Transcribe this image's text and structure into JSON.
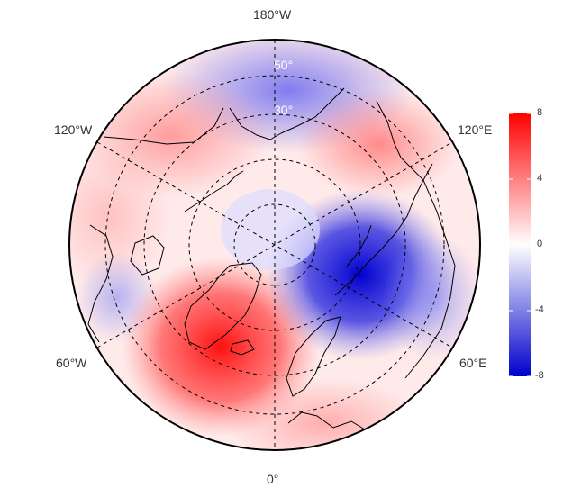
{
  "map": {
    "projection": "north polar stereographic",
    "longitude_labels": {
      "top": "180°W",
      "left_upper": "120°W",
      "right_upper": "120°E",
      "left_lower": "60°W",
      "right_lower": "60°E",
      "bottom": "0°"
    },
    "latitude_labels": [
      "50°",
      "30°"
    ],
    "colorbar": {
      "ticks": [
        "8",
        "4",
        "0",
        "-4",
        "-8"
      ],
      "min": -8,
      "max": 8,
      "colors": {
        "high": "#ff0000",
        "mid": "#ffffff",
        "low": "#0000cc"
      }
    },
    "field_anomalies": [
      {
        "region": "Greenland-Iceland-Atlantic",
        "value": 7
      },
      {
        "region": "Barents-Kara-Scandinavia",
        "value": -7
      },
      {
        "region": "North Pacific",
        "value": -3
      },
      {
        "region": "East Siberia",
        "value": 3
      },
      {
        "region": "Alaska-Bering",
        "value": 2
      },
      {
        "region": "Central Asia",
        "value": -2
      },
      {
        "region": "Europe",
        "value": 2
      },
      {
        "region": "North America",
        "value": 1
      }
    ]
  }
}
